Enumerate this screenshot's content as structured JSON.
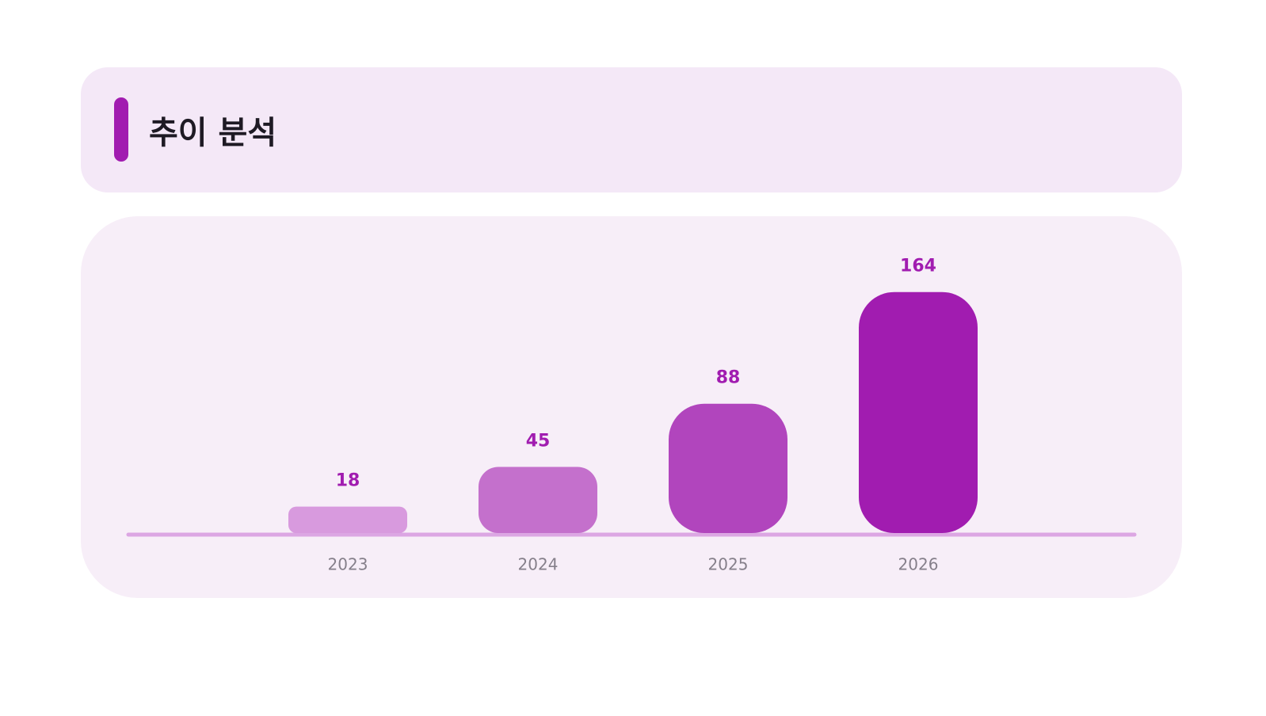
{
  "chart_data": {
    "type": "bar",
    "title": "추이 분석",
    "categories": [
      "2023",
      "2024",
      "2025",
      "2026"
    ],
    "values": [
      18,
      45,
      88,
      164
    ],
    "colors": [
      "#d89ade",
      "#c470cc",
      "#b145bd",
      "#a11cb0"
    ],
    "label_color": "#a11cb0",
    "ylim": [
      0,
      180
    ]
  }
}
